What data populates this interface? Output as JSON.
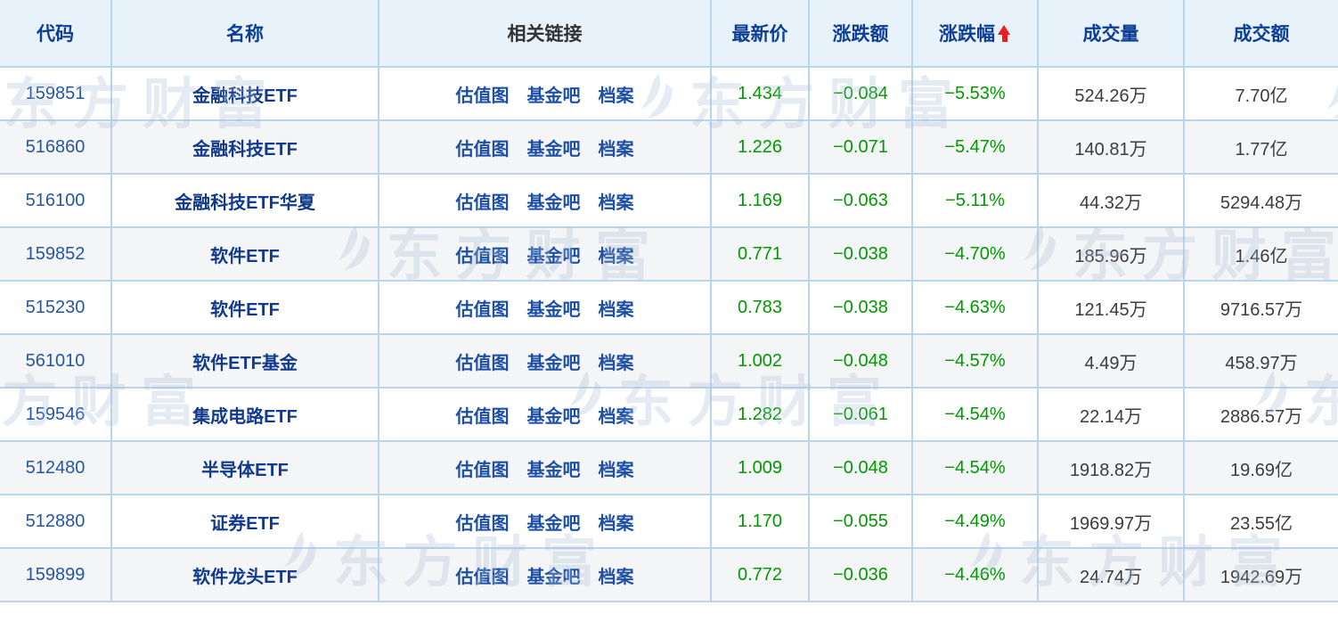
{
  "watermark": {
    "text": "东方财富"
  },
  "colors": {
    "header_bg": "#e7f2fb",
    "row_alt_bg": "#f4f5f6",
    "border": "#b9d5ec",
    "header_text_blue": "#0d3d94",
    "header_text_plain": "#333333",
    "code_blue": "#2456a8",
    "name_blue": "#11398c",
    "link_blue": "#1d4fa6",
    "negative_green": "#009900",
    "value_gray": "#3c3c3c",
    "sort_arrow_red": "#ee1c1c"
  },
  "table": {
    "columns": [
      {
        "key": "code",
        "label": "代码"
      },
      {
        "key": "name",
        "label": "名称"
      },
      {
        "key": "links",
        "label": "相关链接"
      },
      {
        "key": "price",
        "label": "最新价"
      },
      {
        "key": "change",
        "label": "涨跌额"
      },
      {
        "key": "pct",
        "label": "涨跌幅"
      },
      {
        "key": "volume",
        "label": "成交量"
      },
      {
        "key": "amount",
        "label": "成交额"
      }
    ],
    "sort": {
      "column": "涨跌幅",
      "icon": "red-up-arrow"
    },
    "link_labels": [
      "估值图",
      "基金吧",
      "档案"
    ],
    "rows": [
      {
        "code": "159851",
        "name": "金融科技ETF",
        "price": "1.434",
        "change": "−0.084",
        "pct": "−5.53%",
        "volume": "524.26万",
        "amount": "7.70亿"
      },
      {
        "code": "516860",
        "name": "金融科技ETF",
        "price": "1.226",
        "change": "−0.071",
        "pct": "−5.47%",
        "volume": "140.81万",
        "amount": "1.77亿"
      },
      {
        "code": "516100",
        "name": "金融科技ETF华夏",
        "price": "1.169",
        "change": "−0.063",
        "pct": "−5.11%",
        "volume": "44.32万",
        "amount": "5294.48万"
      },
      {
        "code": "159852",
        "name": "软件ETF",
        "price": "0.771",
        "change": "−0.038",
        "pct": "−4.70%",
        "volume": "185.96万",
        "amount": "1.46亿"
      },
      {
        "code": "515230",
        "name": "软件ETF",
        "price": "0.783",
        "change": "−0.038",
        "pct": "−4.63%",
        "volume": "121.45万",
        "amount": "9716.57万"
      },
      {
        "code": "561010",
        "name": "软件ETF基金",
        "price": "1.002",
        "change": "−0.048",
        "pct": "−4.57%",
        "volume": "4.49万",
        "amount": "458.97万"
      },
      {
        "code": "159546",
        "name": "集成电路ETF",
        "price": "1.282",
        "change": "−0.061",
        "pct": "−4.54%",
        "volume": "22.14万",
        "amount": "2886.57万"
      },
      {
        "code": "512480",
        "name": "半导体ETF",
        "price": "1.009",
        "change": "−0.048",
        "pct": "−4.54%",
        "volume": "1918.82万",
        "amount": "19.69亿"
      },
      {
        "code": "512880",
        "name": "证券ETF",
        "price": "1.170",
        "change": "−0.055",
        "pct": "−4.49%",
        "volume": "1969.97万",
        "amount": "23.55亿"
      },
      {
        "code": "159899",
        "name": "软件龙头ETF",
        "price": "0.772",
        "change": "−0.036",
        "pct": "−4.46%",
        "volume": "24.74万",
        "amount": "1942.69万"
      }
    ]
  }
}
